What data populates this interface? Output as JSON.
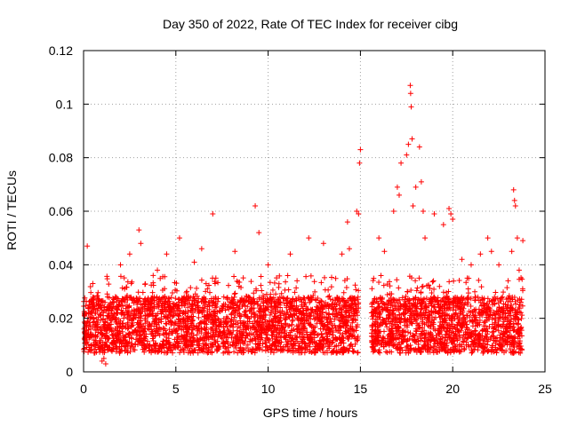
{
  "chart_data": {
    "type": "scatter",
    "title": "Day 350 of 2022, Rate Of TEC Index for receiver cibg",
    "xlabel": "GPS time / hours",
    "ylabel": "ROTI / TECUs",
    "xlim": [
      0,
      25
    ],
    "ylim": [
      0,
      0.12
    ],
    "x_ticks": [
      0,
      5,
      10,
      15,
      20,
      25
    ],
    "y_ticks": [
      0,
      0.02,
      0.04,
      0.06,
      0.08,
      0.1,
      0.12
    ],
    "x_tick_labels": [
      "0",
      "5",
      "10",
      "15",
      "20",
      "25"
    ],
    "y_tick_labels": [
      "0",
      "0.02",
      "0.04",
      "0.06",
      "0.08",
      "0.1",
      "0.12"
    ],
    "grid": true,
    "marker": "+",
    "series": [
      {
        "color": "#ff0000",
        "points": [
          [
            0.2,
            0.047
          ],
          [
            0.5,
            0.033
          ],
          [
            1.0,
            0.004
          ],
          [
            1.1,
            0.005
          ],
          [
            1.2,
            0.003
          ],
          [
            2.0,
            0.04
          ],
          [
            2.5,
            0.044
          ],
          [
            3.0,
            0.053
          ],
          [
            3.1,
            0.048
          ],
          [
            4.0,
            0.038
          ],
          [
            4.5,
            0.044
          ],
          [
            5.2,
            0.05
          ],
          [
            6.0,
            0.041
          ],
          [
            6.4,
            0.046
          ],
          [
            7.0,
            0.059
          ],
          [
            8.2,
            0.045
          ],
          [
            9.3,
            0.062
          ],
          [
            9.5,
            0.052
          ],
          [
            10.0,
            0.04
          ],
          [
            11.2,
            0.044
          ],
          [
            12.2,
            0.05
          ],
          [
            13.0,
            0.048
          ],
          [
            14.0,
            0.044
          ],
          [
            14.3,
            0.056
          ],
          [
            14.4,
            0.046
          ],
          [
            14.8,
            0.06
          ],
          [
            14.9,
            0.059
          ],
          [
            15.0,
            0.083
          ],
          [
            14.95,
            0.078
          ],
          [
            16.0,
            0.05
          ],
          [
            16.3,
            0.045
          ],
          [
            16.8,
            0.06
          ],
          [
            17.0,
            0.069
          ],
          [
            17.1,
            0.066
          ],
          [
            17.2,
            0.078
          ],
          [
            17.5,
            0.081
          ],
          [
            17.6,
            0.085
          ],
          [
            17.7,
            0.107
          ],
          [
            17.72,
            0.104
          ],
          [
            17.75,
            0.099
          ],
          [
            17.8,
            0.087
          ],
          [
            17.85,
            0.062
          ],
          [
            18.0,
            0.069
          ],
          [
            18.2,
            0.084
          ],
          [
            18.3,
            0.071
          ],
          [
            18.4,
            0.06
          ],
          [
            18.5,
            0.05
          ],
          [
            19.0,
            0.059
          ],
          [
            19.5,
            0.055
          ],
          [
            19.8,
            0.061
          ],
          [
            19.9,
            0.059
          ],
          [
            20.0,
            0.057
          ],
          [
            20.5,
            0.042
          ],
          [
            21.0,
            0.04
          ],
          [
            21.5,
            0.044
          ],
          [
            21.9,
            0.05
          ],
          [
            22.1,
            0.045
          ],
          [
            22.5,
            0.04
          ],
          [
            23.0,
            0.034
          ],
          [
            23.2,
            0.045
          ],
          [
            23.3,
            0.068
          ],
          [
            23.35,
            0.064
          ],
          [
            23.4,
            0.062
          ],
          [
            23.5,
            0.05
          ],
          [
            23.8,
            0.049
          ],
          [
            23.6,
            0.038
          ]
        ],
        "dense_band": {
          "segments": [
            [
              0.0,
              14.9
            ],
            [
              15.6,
              23.8
            ]
          ],
          "ymin": 0.007,
          "ymax": 0.028,
          "ymax_excursion": 0.036
        }
      }
    ]
  }
}
